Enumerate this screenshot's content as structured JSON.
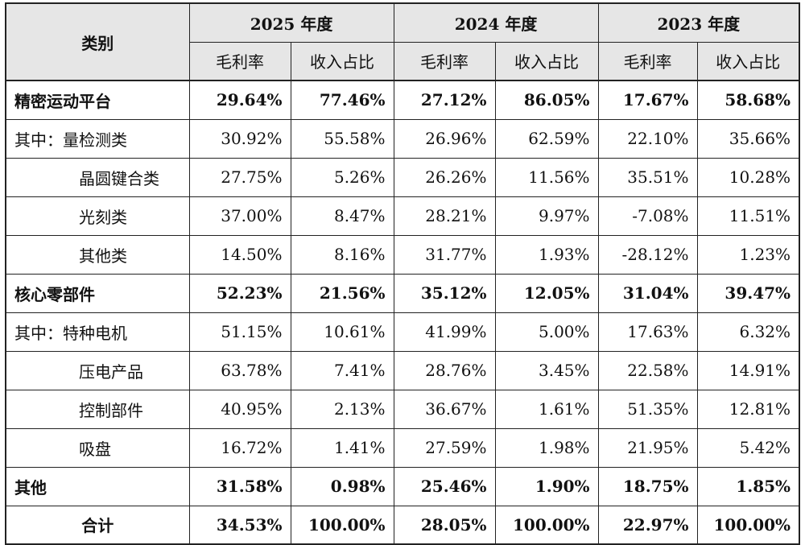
{
  "header": {
    "category": "类别",
    "years": [
      "2025 年度",
      "2024 年度",
      "2023 年度"
    ],
    "gross_margin": "毛利率",
    "revenue_share": "收入占比"
  },
  "rows": [
    {
      "label": "精密运动平台",
      "bold": true,
      "indent": false,
      "values": [
        "29.64%",
        "77.46%",
        "27.12%",
        "86.05%",
        "17.67%",
        "58.68%"
      ]
    },
    {
      "label": "其中：量检测类",
      "bold": false,
      "indent": false,
      "values": [
        "30.92%",
        "55.58%",
        "26.96%",
        "62.59%",
        "22.10%",
        "35.66%"
      ]
    },
    {
      "label": "晶圆键合类",
      "bold": false,
      "indent": true,
      "values": [
        "27.75%",
        "5.26%",
        "26.26%",
        "11.56%",
        "35.51%",
        "10.28%"
      ]
    },
    {
      "label": "光刻类",
      "bold": false,
      "indent": true,
      "values": [
        "37.00%",
        "8.47%",
        "28.21%",
        "9.97%",
        "-7.08%",
        "11.51%"
      ]
    },
    {
      "label": "其他类",
      "bold": false,
      "indent": true,
      "values": [
        "14.50%",
        "8.16%",
        "31.77%",
        "1.93%",
        "-28.12%",
        "1.23%"
      ]
    },
    {
      "label": "核心零部件",
      "bold": true,
      "indent": false,
      "values": [
        "52.23%",
        "21.56%",
        "35.12%",
        "12.05%",
        "31.04%",
        "39.47%"
      ]
    },
    {
      "label": "其中：特种电机",
      "bold": false,
      "indent": false,
      "values": [
        "51.15%",
        "10.61%",
        "41.99%",
        "5.00%",
        "17.63%",
        "6.32%"
      ]
    },
    {
      "label": "压电产品",
      "bold": false,
      "indent": true,
      "values": [
        "63.78%",
        "7.41%",
        "28.76%",
        "3.45%",
        "22.58%",
        "14.91%"
      ]
    },
    {
      "label": "控制部件",
      "bold": false,
      "indent": true,
      "values": [
        "40.95%",
        "2.13%",
        "36.67%",
        "1.61%",
        "51.35%",
        "12.81%"
      ]
    },
    {
      "label": "吸盘",
      "bold": false,
      "indent": true,
      "values": [
        "16.72%",
        "1.41%",
        "27.59%",
        "1.98%",
        "21.95%",
        "5.42%"
      ]
    },
    {
      "label": "其他",
      "bold": true,
      "indent": false,
      "values": [
        "31.58%",
        "0.98%",
        "25.46%",
        "1.90%",
        "18.75%",
        "1.85%"
      ]
    },
    {
      "label": "合计",
      "bold": true,
      "indent": false,
      "total": true,
      "values": [
        "34.53%",
        "100.00%",
        "28.05%",
        "100.00%",
        "22.97%",
        "100.00%"
      ]
    }
  ]
}
